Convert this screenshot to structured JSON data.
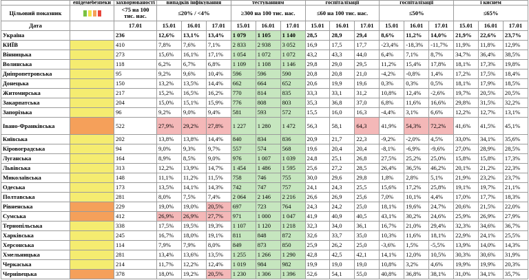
{
  "header": {
    "top": [
      "епідемебезпеки",
      "захворюваності",
      "випадків інфікування",
      "тестуванням",
      "госпіталізації",
      "госпіталізації",
      "і киснем"
    ],
    "target_label": "Цільовий показник",
    "targets": [
      "<75 на 100 тис. нас.",
      "≤20% / <4%",
      "≥300 на 100 тис. нас.",
      "≤60 на 100 тис. нас.",
      "≤50%",
      "≤65%"
    ],
    "date_label": "Дата",
    "dates": [
      "17.01",
      "15.01",
      "16.01",
      "17.01",
      "15.01",
      "16.01",
      "17.01",
      "15.01",
      "16.01",
      "17.01",
      "15.01",
      "16.01",
      "17.01",
      "15.01",
      "16.01",
      "17.01"
    ],
    "swatches": [
      "#7ac142",
      "#f2e14c",
      "#f5a05a",
      "#e8463c"
    ]
  },
  "green_columns": [
    4,
    5,
    6
  ],
  "red_color": "#f4b8b8",
  "green_color": "#c6e6bf",
  "rows": [
    {
      "name": "Україна",
      "values": [
        "236",
        "12,6%",
        "13,1%",
        "13,4%",
        "1 079",
        "1 105",
        "1 140",
        "28,5",
        "28,9",
        "29,4",
        "8,6%",
        "11,2%",
        "14,0%",
        "21,9%",
        "22,6%",
        "23,7%"
      ],
      "red": []
    },
    {
      "name": "КИЇВ",
      "status": "#f5ec70",
      "values": [
        "410",
        "7,8%",
        "7,6%",
        "7,1%",
        "2 833",
        "2 938",
        "3 052",
        "16,9",
        "17,5",
        "17,7",
        "-23,4%",
        "-18,3%",
        "-11,7%",
        "11,9%",
        "11,8%",
        "12,9%"
      ],
      "red": []
    },
    {
      "name": "Вінницька",
      "status": "#f5ec70",
      "values": [
        "273",
        "15,6%",
        "16,1%",
        "17,1%",
        "1 054",
        "1 072",
        "1 072",
        "43,2",
        "43,3",
        "44,0",
        "6,4%",
        "7,1%",
        "8,7%",
        "34,7%",
        "36,4%",
        "38,5%"
      ],
      "red": []
    },
    {
      "name": "Волинська",
      "status": "#f5ec70",
      "values": [
        "118",
        "6,2%",
        "6,7%",
        "6,8%",
        "1 109",
        "1 108",
        "1 146",
        "29,8",
        "29,0",
        "29,5",
        "11,2%",
        "15,4%",
        "17,8%",
        "18,1%",
        "17,3%",
        "19,8%"
      ],
      "red": []
    },
    {
      "name": "Дніпропетровська",
      "status": "#f5ec70",
      "values": [
        "95",
        "9,2%",
        "9,6%",
        "10,4%",
        "596",
        "596",
        "590",
        "20,8",
        "20,8",
        "21,0",
        "-4,2%",
        "-0,8%",
        "1,4%",
        "17,2%",
        "17,5%",
        "18,4%"
      ],
      "red": []
    },
    {
      "name": "Донецька",
      "status": "#f5ec70",
      "values": [
        "150",
        "13,2%",
        "13,5%",
        "14,4%",
        "662",
        "664",
        "652",
        "20,6",
        "19,9",
        "19,6",
        "0,3%",
        "0,3%",
        "0,5%",
        "18,1%",
        "17,9%",
        "18,5%"
      ],
      "red": []
    },
    {
      "name": "Житомирська",
      "status": "#f5ec70",
      "values": [
        "217",
        "15,2%",
        "16,5%",
        "16,2%",
        "770",
        "814",
        "835",
        "33,3",
        "33,1",
        "31,2",
        "10,8%",
        "12,4%",
        "-2,6%",
        "19,7%",
        "20,5%",
        "20,5%"
      ],
      "red": []
    },
    {
      "name": "Закарпатська",
      "status": "#f5ec70",
      "values": [
        "204",
        "15,0%",
        "15,1%",
        "15,9%",
        "776",
        "808",
        "803",
        "35,3",
        "36,8",
        "37,0",
        "6,8%",
        "11,6%",
        "16,6%",
        "29,8%",
        "31,5%",
        "32,2%"
      ],
      "red": []
    },
    {
      "name": "Запорізька",
      "status": "#f5ec70",
      "values": [
        "96",
        "9,2%",
        "9,0%",
        "9,4%",
        "581",
        "593",
        "572",
        "15,5",
        "16,0",
        "16,3",
        "-4,4%",
        "3,1%",
        "6,6%",
        "12,2%",
        "12,7%",
        "13,1%"
      ],
      "red": []
    },
    {
      "name": "Івано-Франківська",
      "status": "#f5a05a",
      "values": [
        "522",
        "27,9%",
        "29,2%",
        "27,8%",
        "1 227",
        "1 280",
        "1 472",
        "56,3",
        "58,1",
        "64,3",
        "41,9%",
        "54,3%",
        "72,2%",
        "41,6%",
        "41,5%",
        "45,1%"
      ],
      "red": [
        1,
        2,
        3,
        9,
        11,
        12
      ]
    },
    {
      "name": "Київська",
      "status": "#f5ec70",
      "values": [
        "202",
        "13,8%",
        "13,8%",
        "14,4%",
        "840",
        "834",
        "836",
        "20,9",
        "21,7",
        "22,3",
        "-9,2%",
        "-2,0%",
        "4,5%",
        "33,0%",
        "34,1%",
        "35,6%"
      ],
      "red": []
    },
    {
      "name": "Кіровоградська",
      "status": "#f5ec70",
      "values": [
        "94",
        "9,0%",
        "9,3%",
        "9,7%",
        "557",
        "574",
        "568",
        "19,6",
        "20,4",
        "20,4",
        "-8,1%",
        "-6,9%",
        "-9,6%",
        "27,0%",
        "28,9%",
        "28,5%"
      ],
      "red": []
    },
    {
      "name": "Луганська",
      "status": "#f5ec70",
      "values": [
        "164",
        "8,9%",
        "8,5%",
        "9,0%",
        "976",
        "1 007",
        "1 039",
        "24,8",
        "25,1",
        "26,8",
        "27,5%",
        "25,2%",
        "25,0%",
        "15,8%",
        "15,8%",
        "17,3%"
      ],
      "red": []
    },
    {
      "name": "Львівська",
      "status": "#f5ec70",
      "values": [
        "313",
        "12,2%",
        "13,9%",
        "14,7%",
        "1 454",
        "1 486",
        "1 595",
        "25,6",
        "27,2",
        "28,5",
        "26,4%",
        "36,5%",
        "46,2%",
        "20,1%",
        "21,2%",
        "22,3%"
      ],
      "red": []
    },
    {
      "name": "Миколаївська",
      "status": "#f5ec70",
      "values": [
        "148",
        "11,1%",
        "11,2%",
        "11,5%",
        "758",
        "746",
        "755",
        "30,0",
        "29,6",
        "29,8",
        "1,8%",
        "2,8%",
        "5,1%",
        "21,9%",
        "23,2%",
        "23,7%"
      ],
      "red": []
    },
    {
      "name": "Одеська",
      "status": "#f5ec70",
      "values": [
        "173",
        "13,5%",
        "14,1%",
        "14,3%",
        "742",
        "747",
        "757",
        "24,1",
        "24,3",
        "25,5",
        "15,6%",
        "17,2%",
        "25,8%",
        "19,1%",
        "19,7%",
        "21,1%"
      ],
      "red": []
    },
    {
      "name": "Полтавська",
      "status": "#f5ec70",
      "values": [
        "281",
        "8,0%",
        "7,5%",
        "7,4%",
        "2 064",
        "2 146",
        "2 216",
        "26,6",
        "26,9",
        "25,6",
        "7,0%",
        "10,1%",
        "4,4%",
        "17,0%",
        "17,7%",
        "18,3%"
      ],
      "red": []
    },
    {
      "name": "Рівненська",
      "status": "#f5a05a",
      "values": [
        "229",
        "19,0%",
        "19,0%",
        "20,5%",
        "697",
        "723",
        "764",
        "24,3",
        "24,2",
        "25,0",
        "18,1%",
        "19,6%",
        "24,7%",
        "20,6%",
        "21,5%",
        "22,0%"
      ],
      "red": [
        3
      ]
    },
    {
      "name": "Сумська",
      "status": "#f5a05a",
      "values": [
        "412",
        "26,9%",
        "26,9%",
        "27,7%",
        "971",
        "1 000",
        "1 047",
        "41,9",
        "40,9",
        "40,5",
        "43,1%",
        "30,2%",
        "24,6%",
        "25,9%",
        "26,9%",
        "27,9%"
      ],
      "red": [
        1,
        2,
        3
      ]
    },
    {
      "name": "Тернопільська",
      "status": "#f5ec70",
      "values": [
        "338",
        "17,5%",
        "19,5%",
        "19,3%",
        "1 107",
        "1 120",
        "1 218",
        "32,3",
        "34,0",
        "36,1",
        "16,7%",
        "21,0%",
        "29,4%",
        "32,3%",
        "34,6%",
        "36,7%"
      ],
      "red": []
    },
    {
      "name": "Харківська",
      "status": "#f5ec70",
      "values": [
        "245",
        "16,7%",
        "18,0%",
        "19,1%",
        "811",
        "848",
        "872",
        "32,6",
        "33,7",
        "35,0",
        "10,3%",
        "11,6%",
        "18,1%",
        "22,9%",
        "24,1%",
        "25,5%"
      ],
      "red": []
    },
    {
      "name": "Херсонська",
      "status": "#f5ec70",
      "values": [
        "114",
        "7,9%",
        "7,9%",
        "8,0%",
        "849",
        "873",
        "850",
        "25,9",
        "26,2",
        "25,0",
        "-3,6%",
        "1,5%",
        "-5,5%",
        "13,9%",
        "14,0%",
        "14,3%"
      ],
      "red": []
    },
    {
      "name": "Хмельницька",
      "status": "#f5ec70",
      "values": [
        "281",
        "13,4%",
        "13,6%",
        "13,5%",
        "1 255",
        "1 266",
        "1 290",
        "42,8",
        "42,5",
        "42,1",
        "14,1%",
        "12,0%",
        "10,5%",
        "30,3%",
        "30,6%",
        "31,9%"
      ],
      "red": []
    },
    {
      "name": "Черкаська",
      "status": "#f5ec70",
      "values": [
        "214",
        "11,7%",
        "12,2%",
        "12,4%",
        "1 019",
        "984",
        "982",
        "19,9",
        "19,0",
        "19,0",
        "10,8%",
        "3,2%",
        "4,6%",
        "19,9%",
        "19,9%",
        "20,3%"
      ],
      "red": []
    },
    {
      "name": "Чернівецька",
      "status": "#f5a05a",
      "values": [
        "378",
        "18,0%",
        "19,2%",
        "20,5%",
        "1 230",
        "1 306",
        "1 396",
        "52,6",
        "54,1",
        "55,0",
        "40,8%",
        "36,8%",
        "38,1%",
        "31,0%",
        "34,1%",
        "35,7%"
      ],
      "red": [
        3
      ]
    }
  ]
}
